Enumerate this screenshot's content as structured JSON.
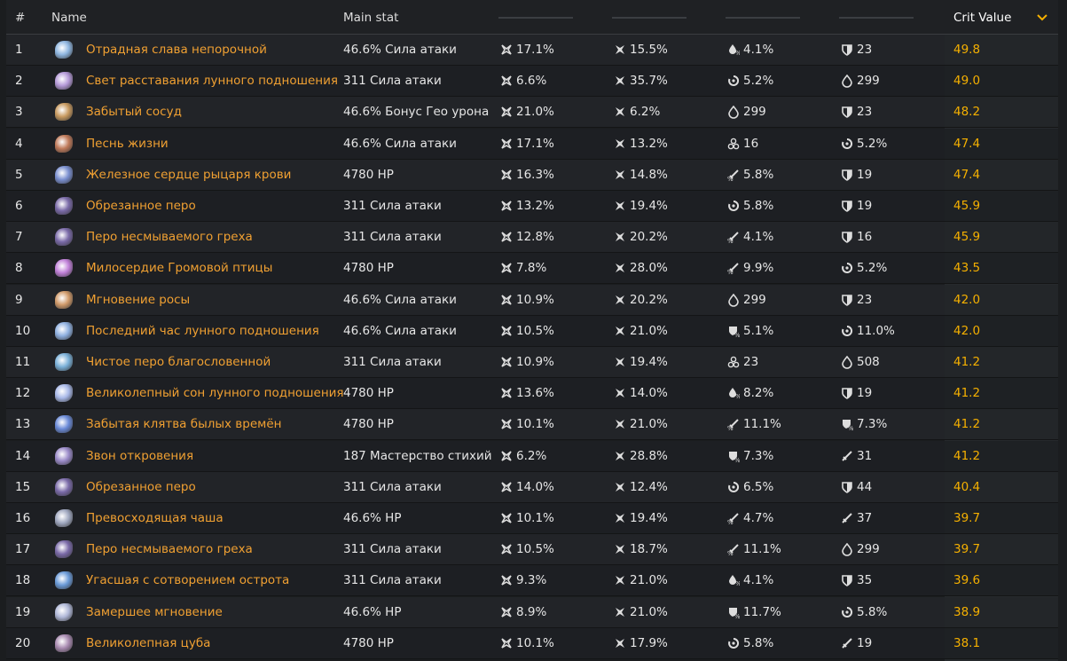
{
  "header": [
    "#",
    "Name",
    "Main stat",
    "Crit Value"
  ],
  "table": {
    "rows": [
      [
        "1",
        "Отрадная слава непорочной",
        "46.6% Сила атаки",
        "17.1%",
        "15.5%",
        "4.1%",
        "23",
        "49.8"
      ],
      [
        "2",
        "Свет расставания лунного подношения",
        "311 Сила атаки",
        "6.6%",
        "35.7%",
        "5.2%",
        "299",
        "49.0"
      ],
      [
        "3",
        "Забытый сосуд",
        "46.6% Бонус Гео урона",
        "21.0%",
        "6.2%",
        "299",
        "23",
        "48.2"
      ],
      [
        "4",
        "Песнь жизни",
        "46.6% Сила атаки",
        "17.1%",
        "13.2%",
        "16",
        "5.2%",
        "47.4"
      ],
      [
        "5",
        "Железное сердце рыцаря крови",
        "4780 HP",
        "16.3%",
        "14.8%",
        "5.8%",
        "19",
        "47.4"
      ],
      [
        "6",
        "Обрезанное перо",
        "311 Сила атаки",
        "13.2%",
        "19.4%",
        "5.8%",
        "19",
        "45.9"
      ],
      [
        "7",
        "Перо несмываемого греха",
        "311 Сила атаки",
        "12.8%",
        "20.2%",
        "4.1%",
        "16",
        "45.9"
      ],
      [
        "8",
        "Милосердие Громовой птицы",
        "4780 HP",
        "7.8%",
        "28.0%",
        "9.9%",
        "5.2%",
        "43.5"
      ],
      [
        "9",
        "Мгновение росы",
        "46.6% Сила атаки",
        "10.9%",
        "20.2%",
        "299",
        "23",
        "42.0"
      ],
      [
        "10",
        "Последний час лунного подношения",
        "46.6% Сила атаки",
        "10.5%",
        "21.0%",
        "5.1%",
        "11.0%",
        "42.0"
      ],
      [
        "11",
        "Чистое перо благословенной",
        "311 Сила атаки",
        "10.9%",
        "19.4%",
        "23",
        "508",
        "41.2"
      ],
      [
        "12",
        "Великолепный сон лунного подношения",
        "4780 HP",
        "13.6%",
        "14.0%",
        "8.2%",
        "19",
        "41.2"
      ],
      [
        "13",
        "Забытая клятва былых времён",
        "4780 HP",
        "10.1%",
        "21.0%",
        "11.1%",
        "7.3%",
        "41.2"
      ],
      [
        "14",
        "Звон откровения",
        "187 Мастерство стихий",
        "6.2%",
        "28.8%",
        "7.3%",
        "31",
        "41.2"
      ],
      [
        "15",
        "Обрезанное перо",
        "311 Сила атаки",
        "14.0%",
        "12.4%",
        "6.5%",
        "44",
        "40.4"
      ],
      [
        "16",
        "Превосходящая чаша",
        "46.6% HP",
        "10.1%",
        "19.4%",
        "4.7%",
        "37",
        "39.7"
      ],
      [
        "17",
        "Перо несмываемого греха",
        "311 Сила атаки",
        "10.5%",
        "18.7%",
        "11.1%",
        "299",
        "39.7"
      ],
      [
        "18",
        "Угасшая с сотворением острота",
        "311 Сила атаки",
        "9.3%",
        "21.0%",
        "4.1%",
        "35",
        "39.6"
      ],
      [
        "19",
        "Замершее мгновение",
        "46.6% HP",
        "8.9%",
        "21.0%",
        "11.7%",
        "5.8%",
        "38.9"
      ],
      [
        "20",
        "Великолепная цуба",
        "4780 HP",
        "10.1%",
        "17.9%",
        "5.8%",
        "19",
        "38.1"
      ]
    ]
  }
}
